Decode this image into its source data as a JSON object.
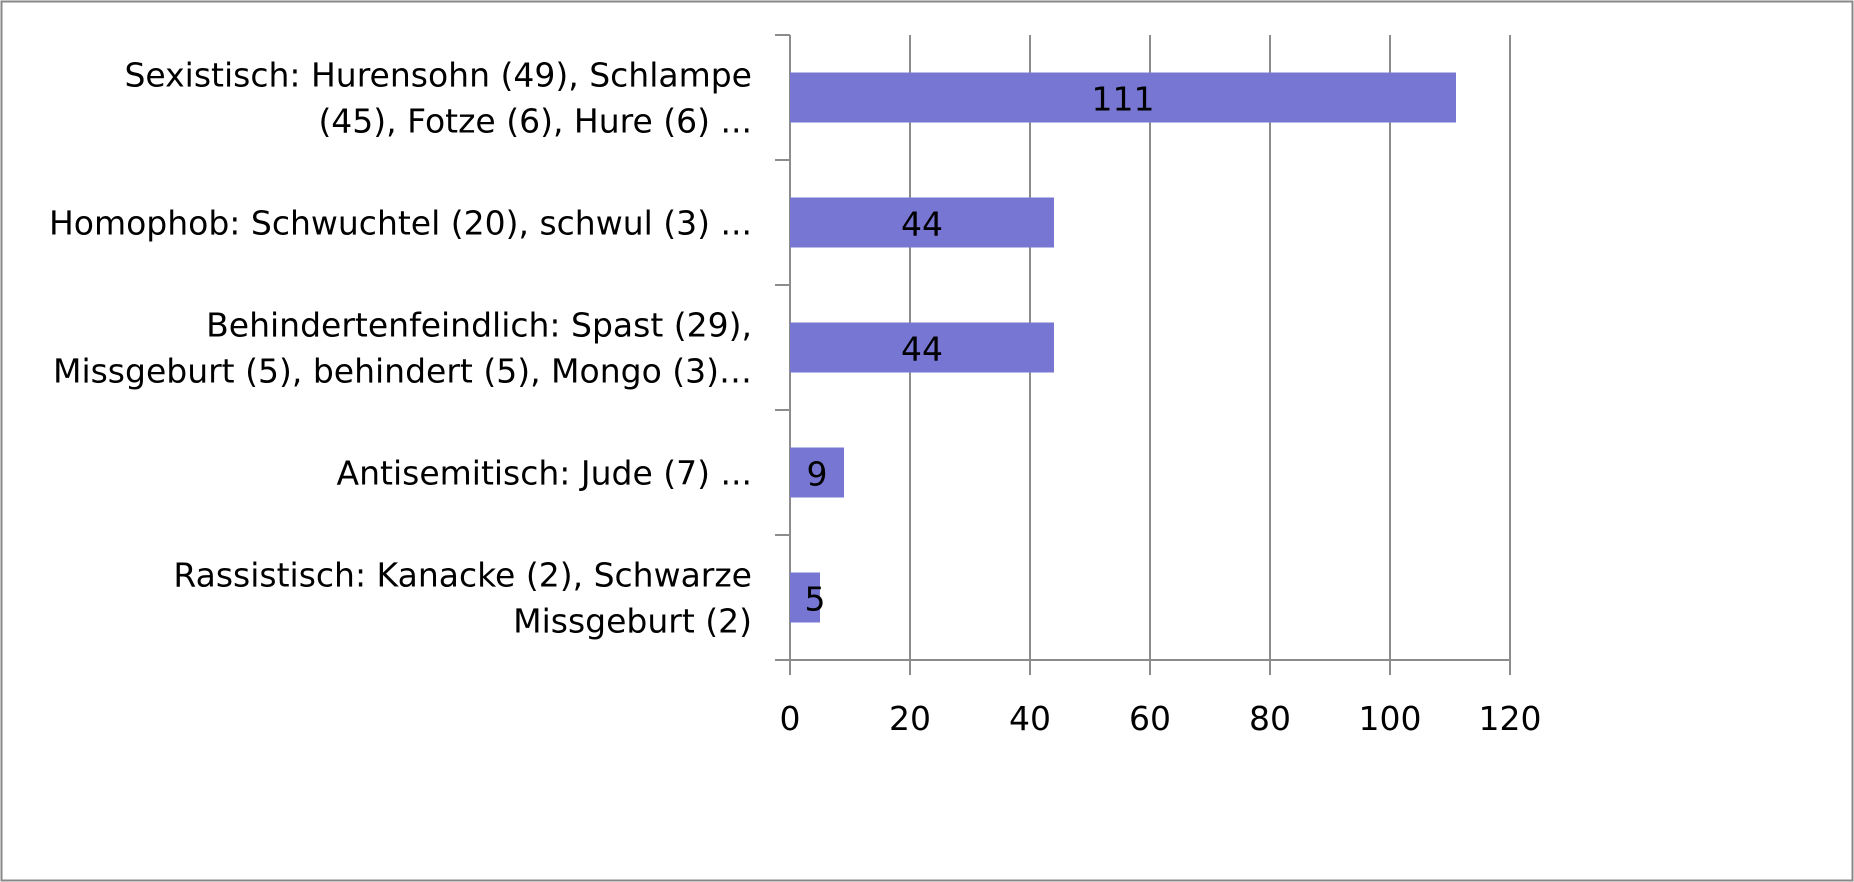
{
  "chart_data": {
    "type": "barh",
    "categories": [
      "Sexistisch: Hurensohn (49), Schlampe\n(45), Fotze (6), Hure (6) ...",
      "Homophob: Schwuchtel (20), schwul (3) ...",
      "Behindertenfeindlich: Spast (29),\nMissgeburt (5), behindert (5), Mongo (3)…",
      "Antisemitisch: Jude (7) ...",
      "Rassistisch: Kanacke (2), Schwarze\nMissgeburt (2)"
    ],
    "values": [
      111,
      44,
      44,
      9,
      5
    ],
    "color": "#7777d3",
    "xlim": [
      0,
      120
    ],
    "xticks": [
      0,
      20,
      40,
      60,
      80,
      100,
      120
    ],
    "grid": true
  }
}
